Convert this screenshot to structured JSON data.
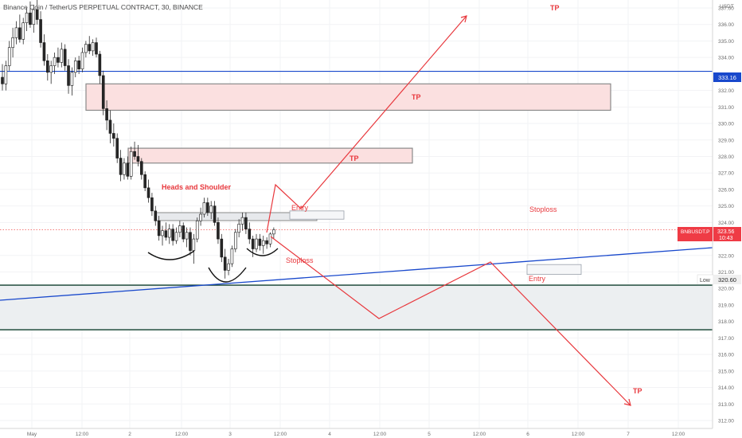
{
  "header": {
    "title": "Binance Coin / TetherUS PERPETUAL CONTRACT, 30, BINANCE"
  },
  "price_axis": {
    "currency": "USDT",
    "ticks": [
      "337.00",
      "336.00",
      "335.00",
      "334.00",
      "332.00",
      "331.00",
      "330.00",
      "329.00",
      "328.00",
      "327.00",
      "326.00",
      "325.00",
      "324.00",
      "322.00",
      "321.00",
      "320.00",
      "319.00",
      "318.00",
      "317.00",
      "316.00",
      "315.00",
      "314.00",
      "313.00",
      "312.00"
    ],
    "current_label": "BNBUSDT.P",
    "current_price": "323.56",
    "countdown": "10:43",
    "hline_label": "333.16",
    "low_label": "Low",
    "low_value": "320.60"
  },
  "time_axis": {
    "ticks": [
      "May",
      "12:00",
      "2",
      "12:00",
      "3",
      "12:00",
      "4",
      "12:00",
      "5",
      "12:00",
      "6",
      "12:00",
      "7",
      "12:00"
    ]
  },
  "annotations": {
    "tp_top": "TP",
    "tp_box1": "TP",
    "tp_box2": "TP",
    "tp_bottom": "TP",
    "pattern": "Heads and Shoulder",
    "entry_long": "Entry",
    "entry_short": "Entry",
    "stoploss_right": "Stoploss",
    "stoploss_left": "Stoploss"
  },
  "colors": {
    "up": "#26a69a",
    "down": "#ef5350",
    "drawing_red": "#e8383d",
    "trendline_blue": "#1848cc",
    "zone_green": "#0e3f2c",
    "zone_fill": "#eceff1",
    "tp_zone_fill": "#fbe0e0"
  },
  "chart_data": {
    "type": "candlestick",
    "symbol": "BNBUSDT.P",
    "interval": "30",
    "ylim": [
      311.6,
      338.4
    ],
    "horizontal_line": 333.16,
    "current_price": 323.56,
    "series": [
      {
        "values": [
          [
            332.8,
            333.6,
            332.0,
            332.4
          ],
          [
            332.4,
            333.8,
            332.0,
            333.5
          ],
          [
            333.5,
            335.0,
            333.2,
            334.6
          ],
          [
            334.6,
            335.8,
            334.0,
            335.2
          ],
          [
            335.2,
            336.2,
            334.8,
            335.8
          ],
          [
            335.8,
            336.6,
            334.9,
            335.1
          ],
          [
            335.1,
            336.4,
            334.8,
            336.1
          ],
          [
            336.1,
            337.0,
            335.6,
            336.7
          ],
          [
            336.7,
            337.4,
            335.8,
            336.0
          ],
          [
            336.0,
            337.2,
            335.5,
            336.9
          ],
          [
            336.9,
            337.5,
            336.0,
            336.3
          ],
          [
            336.3,
            336.8,
            334.6,
            334.9
          ],
          [
            334.9,
            335.4,
            333.5,
            333.8
          ],
          [
            333.8,
            334.2,
            332.6,
            333.1
          ],
          [
            333.1,
            333.8,
            332.4,
            333.5
          ],
          [
            333.5,
            334.3,
            333.0,
            334.0
          ],
          [
            334.0,
            334.6,
            333.4,
            333.7
          ],
          [
            333.7,
            334.9,
            333.4,
            334.5
          ],
          [
            334.5,
            334.8,
            333.2,
            333.5
          ],
          [
            333.5,
            333.9,
            331.8,
            332.3
          ],
          [
            332.3,
            333.4,
            331.7,
            333.1
          ],
          [
            333.1,
            334.0,
            332.8,
            333.8
          ],
          [
            333.8,
            334.1,
            333.0,
            333.3
          ],
          [
            333.3,
            334.6,
            333.1,
            334.3
          ],
          [
            334.3,
            335.0,
            334.0,
            334.8
          ],
          [
            334.8,
            335.3,
            334.2,
            334.4
          ],
          [
            334.4,
            335.1,
            334.1,
            334.9
          ],
          [
            334.9,
            335.2,
            334.0,
            334.2
          ],
          [
            334.2,
            334.4,
            332.4,
            332.9
          ],
          [
            332.9,
            333.2,
            330.5,
            330.9
          ],
          [
            330.9,
            331.4,
            329.6,
            330.2
          ],
          [
            330.2,
            330.8,
            328.8,
            329.4
          ],
          [
            329.4,
            330.0,
            328.6,
            329.1
          ],
          [
            329.1,
            329.4,
            327.6,
            327.9
          ],
          [
            327.9,
            328.4,
            326.5,
            326.9
          ],
          [
            326.9,
            327.9,
            326.6,
            327.6
          ],
          [
            327.6,
            328.0,
            326.6,
            326.8
          ],
          [
            326.8,
            328.6,
            326.6,
            328.3
          ],
          [
            328.3,
            328.9,
            327.8,
            328.0
          ],
          [
            328.0,
            328.7,
            327.4,
            327.7
          ],
          [
            327.7,
            327.9,
            326.6,
            326.9
          ],
          [
            326.9,
            327.1,
            325.9,
            326.1
          ],
          [
            326.1,
            326.6,
            325.2,
            325.5
          ],
          [
            325.5,
            325.8,
            324.4,
            324.7
          ],
          [
            324.7,
            325.0,
            323.8,
            324.1
          ],
          [
            324.1,
            324.4,
            322.9,
            323.2
          ],
          [
            323.2,
            323.8,
            322.6,
            323.5
          ],
          [
            323.5,
            324.0,
            322.9,
            323.1
          ],
          [
            323.1,
            323.9,
            322.7,
            323.6
          ],
          [
            323.6,
            323.9,
            322.6,
            322.9
          ],
          [
            322.9,
            323.7,
            322.7,
            323.4
          ],
          [
            323.4,
            324.1,
            323.1,
            323.8
          ],
          [
            323.8,
            324.0,
            322.8,
            323.0
          ],
          [
            323.0,
            323.7,
            322.5,
            323.4
          ],
          [
            323.4,
            323.7,
            322.0,
            322.3
          ],
          [
            322.3,
            323.3,
            321.5,
            323.0
          ],
          [
            323.0,
            324.3,
            322.8,
            324.1
          ],
          [
            324.1,
            324.9,
            323.8,
            324.5
          ],
          [
            324.5,
            325.5,
            324.3,
            325.2
          ],
          [
            325.2,
            325.5,
            324.4,
            324.6
          ],
          [
            324.6,
            325.3,
            324.2,
            325.0
          ],
          [
            325.0,
            325.3,
            323.8,
            324.0
          ],
          [
            324.0,
            324.3,
            322.7,
            323.0
          ],
          [
            323.0,
            323.3,
            321.6,
            321.9
          ],
          [
            321.9,
            322.4,
            320.6,
            321.1
          ],
          [
            321.1,
            321.8,
            320.8,
            321.5
          ],
          [
            321.5,
            322.6,
            321.3,
            322.4
          ],
          [
            322.4,
            323.6,
            322.2,
            323.4
          ],
          [
            323.4,
            324.2,
            323.1,
            323.9
          ],
          [
            323.9,
            324.6,
            323.5,
            324.3
          ],
          [
            324.3,
            324.6,
            323.3,
            323.6
          ],
          [
            323.6,
            324.0,
            322.7,
            323.0
          ],
          [
            323.0,
            323.2,
            321.9,
            322.4
          ],
          [
            322.4,
            323.3,
            322.2,
            323.0
          ],
          [
            323.0,
            323.3,
            322.3,
            322.6
          ],
          [
            322.6,
            323.2,
            322.1,
            322.9
          ],
          [
            322.9,
            323.1,
            322.4,
            322.7
          ],
          [
            322.7,
            323.4,
            322.5,
            323.3
          ],
          [
            323.3,
            323.7,
            323.0,
            323.56
          ]
        ]
      }
    ],
    "drawings": {
      "tp_zones": [
        {
          "label": "TP",
          "price_low": 330.8,
          "price_high": 332.4
        },
        {
          "label": "TP",
          "price_low": 327.6,
          "price_high": 328.5
        }
      ],
      "entry_zones": [
        {
          "label": "Entry",
          "price_low": 324.2,
          "price_high": 324.7
        },
        {
          "label": "Entry",
          "price_low": 320.85,
          "price_high": 321.45
        }
      ],
      "support_zone": {
        "price_low": 317.5,
        "price_high": 320.2
      },
      "pattern": "Heads and Shoulder",
      "stoploss_labels": [
        "Stoploss",
        "Stoploss"
      ]
    }
  }
}
